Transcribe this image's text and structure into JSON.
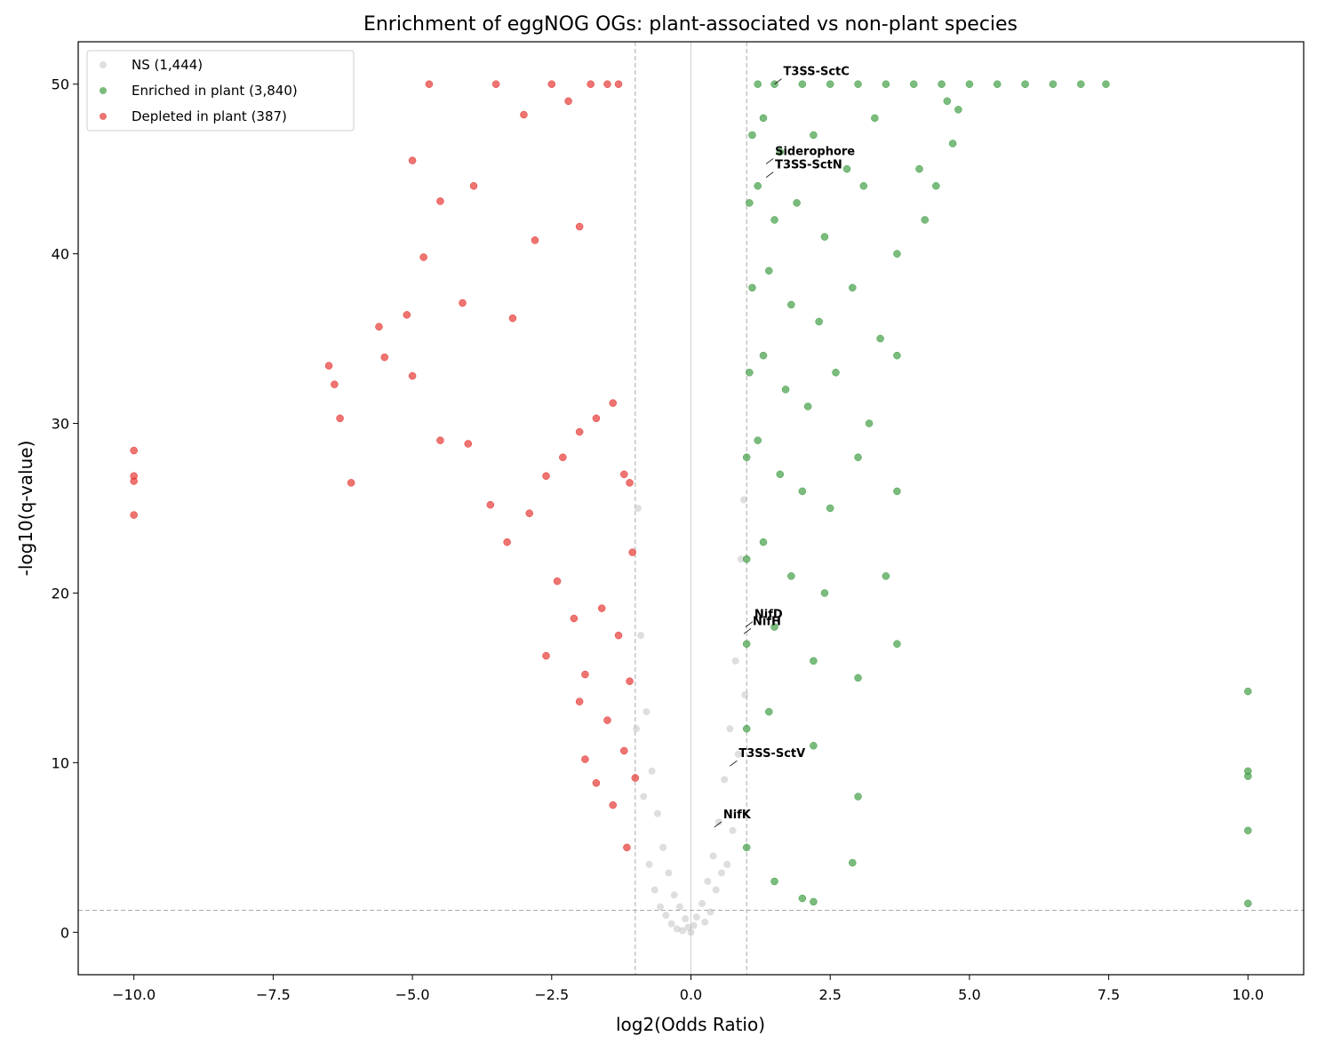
{
  "chart_data": {
    "type": "scatter",
    "title": "Enrichment of eggNOG OGs: plant-associated vs non-plant species",
    "x_label": "log2(Odds Ratio)",
    "y_label": "-log10(q-value)",
    "xlim": [
      -11,
      11
    ],
    "ylim": [
      -2.5,
      52.5
    ],
    "xticks": [
      {
        "value": -10,
        "label": "−10.0"
      },
      {
        "value": -7.5,
        "label": "−7.5"
      },
      {
        "value": -5,
        "label": "−5.0"
      },
      {
        "value": -2.5,
        "label": "−2.5"
      },
      {
        "value": 0,
        "label": "0.0"
      },
      {
        "value": 2.5,
        "label": "2.5"
      },
      {
        "value": 5,
        "label": "5.0"
      },
      {
        "value": 7.5,
        "label": "7.5"
      },
      {
        "value": 10,
        "label": "10.0"
      }
    ],
    "yticks": [
      0,
      10,
      20,
      30,
      40,
      50
    ],
    "grid": false,
    "legend": "upper left",
    "reference_lines": {
      "x_dashed": [
        -1,
        1
      ],
      "x_solid": [
        0
      ],
      "y_dashed": [
        1.3
      ]
    },
    "series": [
      {
        "name": "NS (1,444)",
        "color": "#bdbdbd",
        "x": [
          0.0,
          -0.05,
          0.05,
          -0.1,
          0.1,
          -0.2,
          0.2,
          -0.3,
          0.3,
          -0.4,
          0.4,
          -0.5,
          0.5,
          -0.6,
          0.6,
          -0.7,
          0.7,
          -0.8,
          0.8,
          -0.9,
          0.9,
          -0.95,
          0.95,
          -0.85,
          0.85,
          -0.75,
          0.75,
          -0.65,
          0.65,
          -0.55,
          0.55,
          -0.98,
          0.97,
          -0.45,
          0.45,
          -0.35,
          0.35,
          -0.25,
          0.25,
          -0.15
        ],
        "y": [
          0.0,
          0.3,
          0.4,
          0.8,
          0.9,
          1.5,
          1.7,
          2.2,
          3.0,
          3.5,
          4.5,
          5.0,
          6.5,
          7.0,
          9.0,
          9.5,
          12.0,
          13.0,
          16.0,
          17.5,
          22.0,
          25.0,
          25.5,
          8.0,
          10.5,
          4.0,
          6.0,
          2.5,
          4.0,
          1.5,
          3.5,
          12.0,
          14.0,
          1.0,
          2.5,
          0.5,
          1.2,
          0.2,
          0.6,
          0.1
        ]
      },
      {
        "name": "Enriched in plant (3,840)",
        "color": "#43a047",
        "x": [
          1.2,
          1.5,
          2.0,
          2.5,
          3.0,
          3.5,
          4.0,
          4.5,
          5.0,
          5.5,
          6.0,
          6.5,
          7.0,
          7.45,
          1.1,
          1.3,
          1.6,
          2.2,
          2.8,
          3.3,
          4.1,
          4.6,
          1.05,
          1.2,
          1.5,
          1.9,
          2.4,
          3.1,
          3.7,
          4.2,
          1.1,
          1.4,
          1.8,
          2.3,
          2.9,
          3.4,
          1.05,
          1.3,
          1.7,
          2.1,
          2.6,
          3.2,
          3.7,
          1.0,
          1.2,
          1.6,
          2.0,
          2.5,
          3.0,
          3.7,
          1.0,
          1.3,
          1.8,
          2.4,
          3.5,
          1.0,
          1.5,
          2.2,
          3.0,
          3.7,
          1.0,
          1.4,
          2.2,
          3.0,
          10.0,
          10.0,
          10.0,
          10.0,
          10.0,
          4.7,
          4.4,
          4.8,
          1.0,
          1.5,
          2.0,
          2.2,
          2.9
        ],
        "y": [
          50,
          50,
          50,
          50,
          50,
          50,
          50,
          50,
          50,
          50,
          50,
          50,
          50,
          50,
          47,
          48,
          46,
          47,
          45,
          48,
          45,
          49,
          43,
          44,
          42,
          43,
          41,
          44,
          40,
          42,
          38,
          39,
          37,
          36,
          38,
          35,
          33,
          34,
          32,
          31,
          33,
          30,
          34,
          28,
          29,
          27,
          26,
          25,
          28,
          26,
          22,
          23,
          21,
          20,
          21,
          17,
          18,
          16,
          15,
          17,
          12,
          13,
          11,
          8,
          14.2,
          9.5,
          9.2,
          6.0,
          1.7,
          46.5,
          44.0,
          48.5,
          5,
          3,
          2,
          1.8,
          4.1
        ]
      },
      {
        "name": "Depleted in plant (387)",
        "color": "#e53935",
        "x": [
          -10,
          -10,
          -10,
          -10,
          -6.5,
          -6.4,
          -6.3,
          -6.1,
          -5.6,
          -5.1,
          -5.0,
          -4.8,
          -4.7,
          -4.5,
          -4.1,
          -3.9,
          -3.5,
          -3.2,
          -3.0,
          -2.8,
          -2.5,
          -2.2,
          -2.0,
          -1.8,
          -1.5,
          -1.3,
          -5.5,
          -5.0,
          -4.5,
          -4.0,
          -3.6,
          -3.3,
          -2.9,
          -2.6,
          -2.3,
          -2.0,
          -1.7,
          -1.4,
          -1.2,
          -1.1,
          -2.4,
          -2.1,
          -1.9,
          -1.6,
          -1.3,
          -1.05,
          -1.5,
          -1.2,
          -1.1,
          -1.0,
          -1.9,
          -1.7,
          -2.0,
          -2.6,
          -1.4,
          -1.15
        ],
        "y": [
          28.4,
          26.9,
          26.6,
          24.6,
          33.4,
          32.3,
          30.3,
          26.5,
          35.7,
          36.4,
          45.5,
          39.8,
          50,
          43.1,
          37.1,
          44.0,
          50,
          36.2,
          48.2,
          40.8,
          50,
          49.0,
          41.6,
          50,
          50,
          50,
          33.9,
          32.8,
          29.0,
          28.8,
          25.2,
          23.0,
          24.7,
          26.9,
          28.0,
          29.5,
          30.3,
          31.2,
          27.0,
          26.5,
          20.7,
          18.5,
          15.2,
          19.1,
          17.5,
          22.4,
          12.5,
          10.7,
          14.8,
          9.1,
          10.2,
          8.8,
          13.6,
          16.3,
          7.5,
          5.0
        ]
      }
    ],
    "annotations": [
      {
        "text": "T3SS-SctC",
        "x": 1.5,
        "y": 50
      },
      {
        "text": "Siderophore",
        "x": 1.35,
        "y": 45.3
      },
      {
        "text": "T3SS-SctN",
        "x": 1.35,
        "y": 44.5
      },
      {
        "text": "NifD",
        "x": 0.98,
        "y": 18.0
      },
      {
        "text": "NifH",
        "x": 0.95,
        "y": 17.6
      },
      {
        "text": "T3SS-SctV",
        "x": 0.7,
        "y": 9.8
      },
      {
        "text": "NifK",
        "x": 0.42,
        "y": 6.2
      }
    ]
  }
}
